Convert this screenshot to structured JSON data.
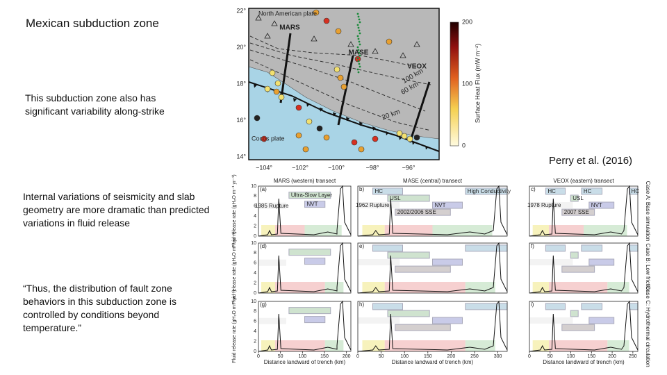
{
  "title": "Mexican subduction zone",
  "text_blocks": [
    "This subduction zone also has significant variability along-strike",
    "Internal variations of seismicity and slab geometry are more dramatic than predicted variations in fluid release",
    "“Thus, the distribution of fault zone behaviors in this subduction zone is controlled by conditions beyond temperature.”"
  ],
  "citation": "Perry et al. (2016)",
  "map": {
    "plate_north": "North American plate",
    "plate_south": "Cocos plate",
    "transects": [
      "MARS",
      "MASE",
      "VEOX"
    ],
    "contours": [
      "100 km",
      "60 km",
      "20 km"
    ],
    "lat_ticks": [
      "22°",
      "20°",
      "18°",
      "16°",
      "14°"
    ],
    "lon_ticks": [
      "−104°",
      "−102°",
      "−100°",
      "−98°",
      "−96°"
    ],
    "colorbar": {
      "label": "Surface Heat Flux (mW m⁻²)",
      "ticks": [
        "200",
        "100",
        "0"
      ]
    }
  },
  "profiles": {
    "columns": [
      {
        "title": "MARS (western) transect",
        "x_ticks": [
          "0",
          "50",
          "100",
          "150",
          "200"
        ],
        "boxes": [
          "1985 Rupture",
          "Ultra-Slow Layer",
          "NVT"
        ]
      },
      {
        "title": "MASE (central) transect",
        "x_ticks": [
          "0",
          "50",
          "100",
          "150",
          "200",
          "250",
          "300"
        ],
        "boxes": [
          "HC",
          "USL",
          "High Conductivity",
          "1962 Rupture",
          "NVT",
          "2002/2006 SSE"
        ]
      },
      {
        "title": "VEOX (eastern) transect",
        "x_ticks": [
          "0",
          "50",
          "100",
          "150",
          "200",
          "250"
        ],
        "boxes": [
          "HC",
          "HC",
          "HC",
          "1978 Rupture",
          "NVT",
          "2007 SSE",
          "USL"
        ]
      }
    ],
    "cases": [
      "Case A: Base simulation",
      "Case B: Low friction",
      "Case C: Hydrothermal circulation"
    ],
    "panel_letters": [
      "(a)",
      "b)",
      "c)",
      "(d)",
      "e)",
      "f)",
      "(g)",
      "h)",
      "i)"
    ],
    "y_label": "Fluid release rate (gH₂O m⁻¹ yr⁻¹)",
    "y_ticks": [
      "10",
      "8",
      "6",
      "4",
      "2",
      "0"
    ],
    "x_label": "Distance landward of trench (km)"
  }
}
